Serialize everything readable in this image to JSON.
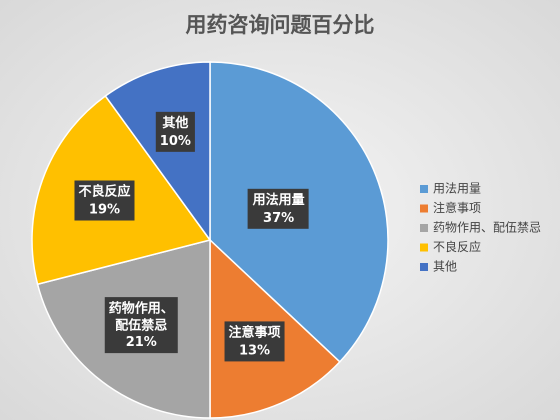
{
  "chart_data": {
    "type": "pie",
    "title": "用药咨询问题百分比",
    "categories": [
      "用法用量",
      "注意事项",
      "药物作用、配伍禁忌",
      "不良反应",
      "其他"
    ],
    "values": [
      37,
      13,
      21,
      19,
      10
    ],
    "value_labels": [
      "37%",
      "13%",
      "21%",
      "19%",
      "10%"
    ],
    "colors": [
      "#5b9bd5",
      "#ed7d31",
      "#a5a5a5",
      "#ffc000",
      "#4472c4"
    ],
    "legend": "right"
  }
}
